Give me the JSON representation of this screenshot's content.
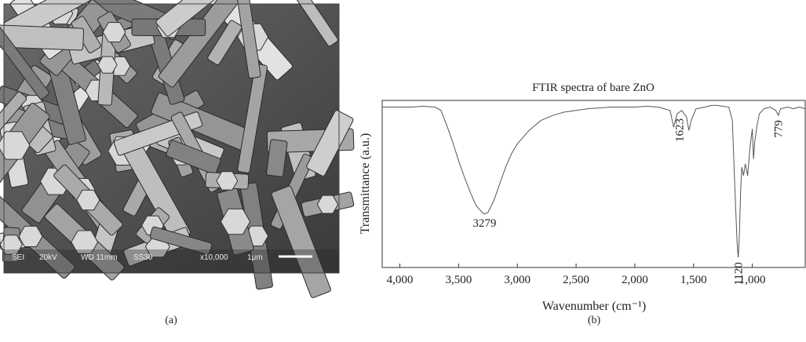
{
  "image": {
    "info_bar": [
      "SEI",
      "20kV",
      "WD 11mm",
      "SS30",
      "x10,000",
      "1μm"
    ]
  },
  "captions": [
    "(a)",
    "(b)"
  ],
  "chart_data": {
    "type": "line",
    "title": "FTIR spectra of bare ZnO",
    "xlabel": "Wavenumber (cm⁻¹)",
    "ylabel": "Transmittance (a.u.)",
    "color": "#555555",
    "reverse_x": true,
    "xlim": [
      4150,
      550
    ],
    "ylim": [
      0,
      100
    ],
    "xticks": [
      {
        "value": 4000,
        "label": "4,000"
      },
      {
        "value": 3500,
        "label": "3,500"
      },
      {
        "value": 3000,
        "label": "3,000"
      },
      {
        "value": 2500,
        "label": "2,500"
      },
      {
        "value": 2000,
        "label": "2,000"
      },
      {
        "value": 1500,
        "label": "1,500"
      },
      {
        "value": 1000,
        "label": "1,000"
      }
    ],
    "x": [
      4150,
      4000,
      3900,
      3800,
      3700,
      3650,
      3600,
      3550,
      3500,
      3450,
      3400,
      3350,
      3300,
      3279,
      3250,
      3200,
      3150,
      3100,
      3050,
      3000,
      2900,
      2800,
      2700,
      2600,
      2500,
      2400,
      2300,
      2200,
      2100,
      2000,
      1900,
      1800,
      1700,
      1670,
      1640,
      1600,
      1560,
      1540,
      1520,
      1480,
      1400,
      1350,
      1300,
      1250,
      1200,
      1170,
      1150,
      1130,
      1120,
      1110,
      1100,
      1090,
      1075,
      1060,
      1040,
      1020,
      1000,
      990,
      980,
      960,
      940,
      900,
      850,
      800,
      779,
      760,
      700,
      650,
      600,
      550
    ],
    "values": [
      96,
      96,
      96,
      96.5,
      96,
      94,
      85,
      75,
      64,
      54,
      45,
      37,
      33,
      32,
      33,
      40,
      50,
      60,
      68,
      74,
      82,
      88,
      91,
      93,
      94,
      95,
      95.5,
      96,
      96,
      96,
      96.5,
      96,
      94,
      84,
      92,
      94,
      90,
      82,
      88,
      95,
      96,
      97,
      97,
      96.5,
      96,
      88,
      50,
      15,
      6,
      20,
      45,
      60,
      55,
      62,
      55,
      72,
      83,
      65,
      75,
      85,
      92,
      95,
      96,
      94,
      91,
      95,
      96,
      95,
      96,
      95
    ],
    "annotations": [
      {
        "x": 3279,
        "orientation": "horizontal"
      },
      {
        "x": 1623,
        "orientation": "vertical"
      },
      {
        "x": 1120,
        "orientation": "vertical"
      },
      {
        "x": 779,
        "orientation": "vertical"
      }
    ]
  }
}
